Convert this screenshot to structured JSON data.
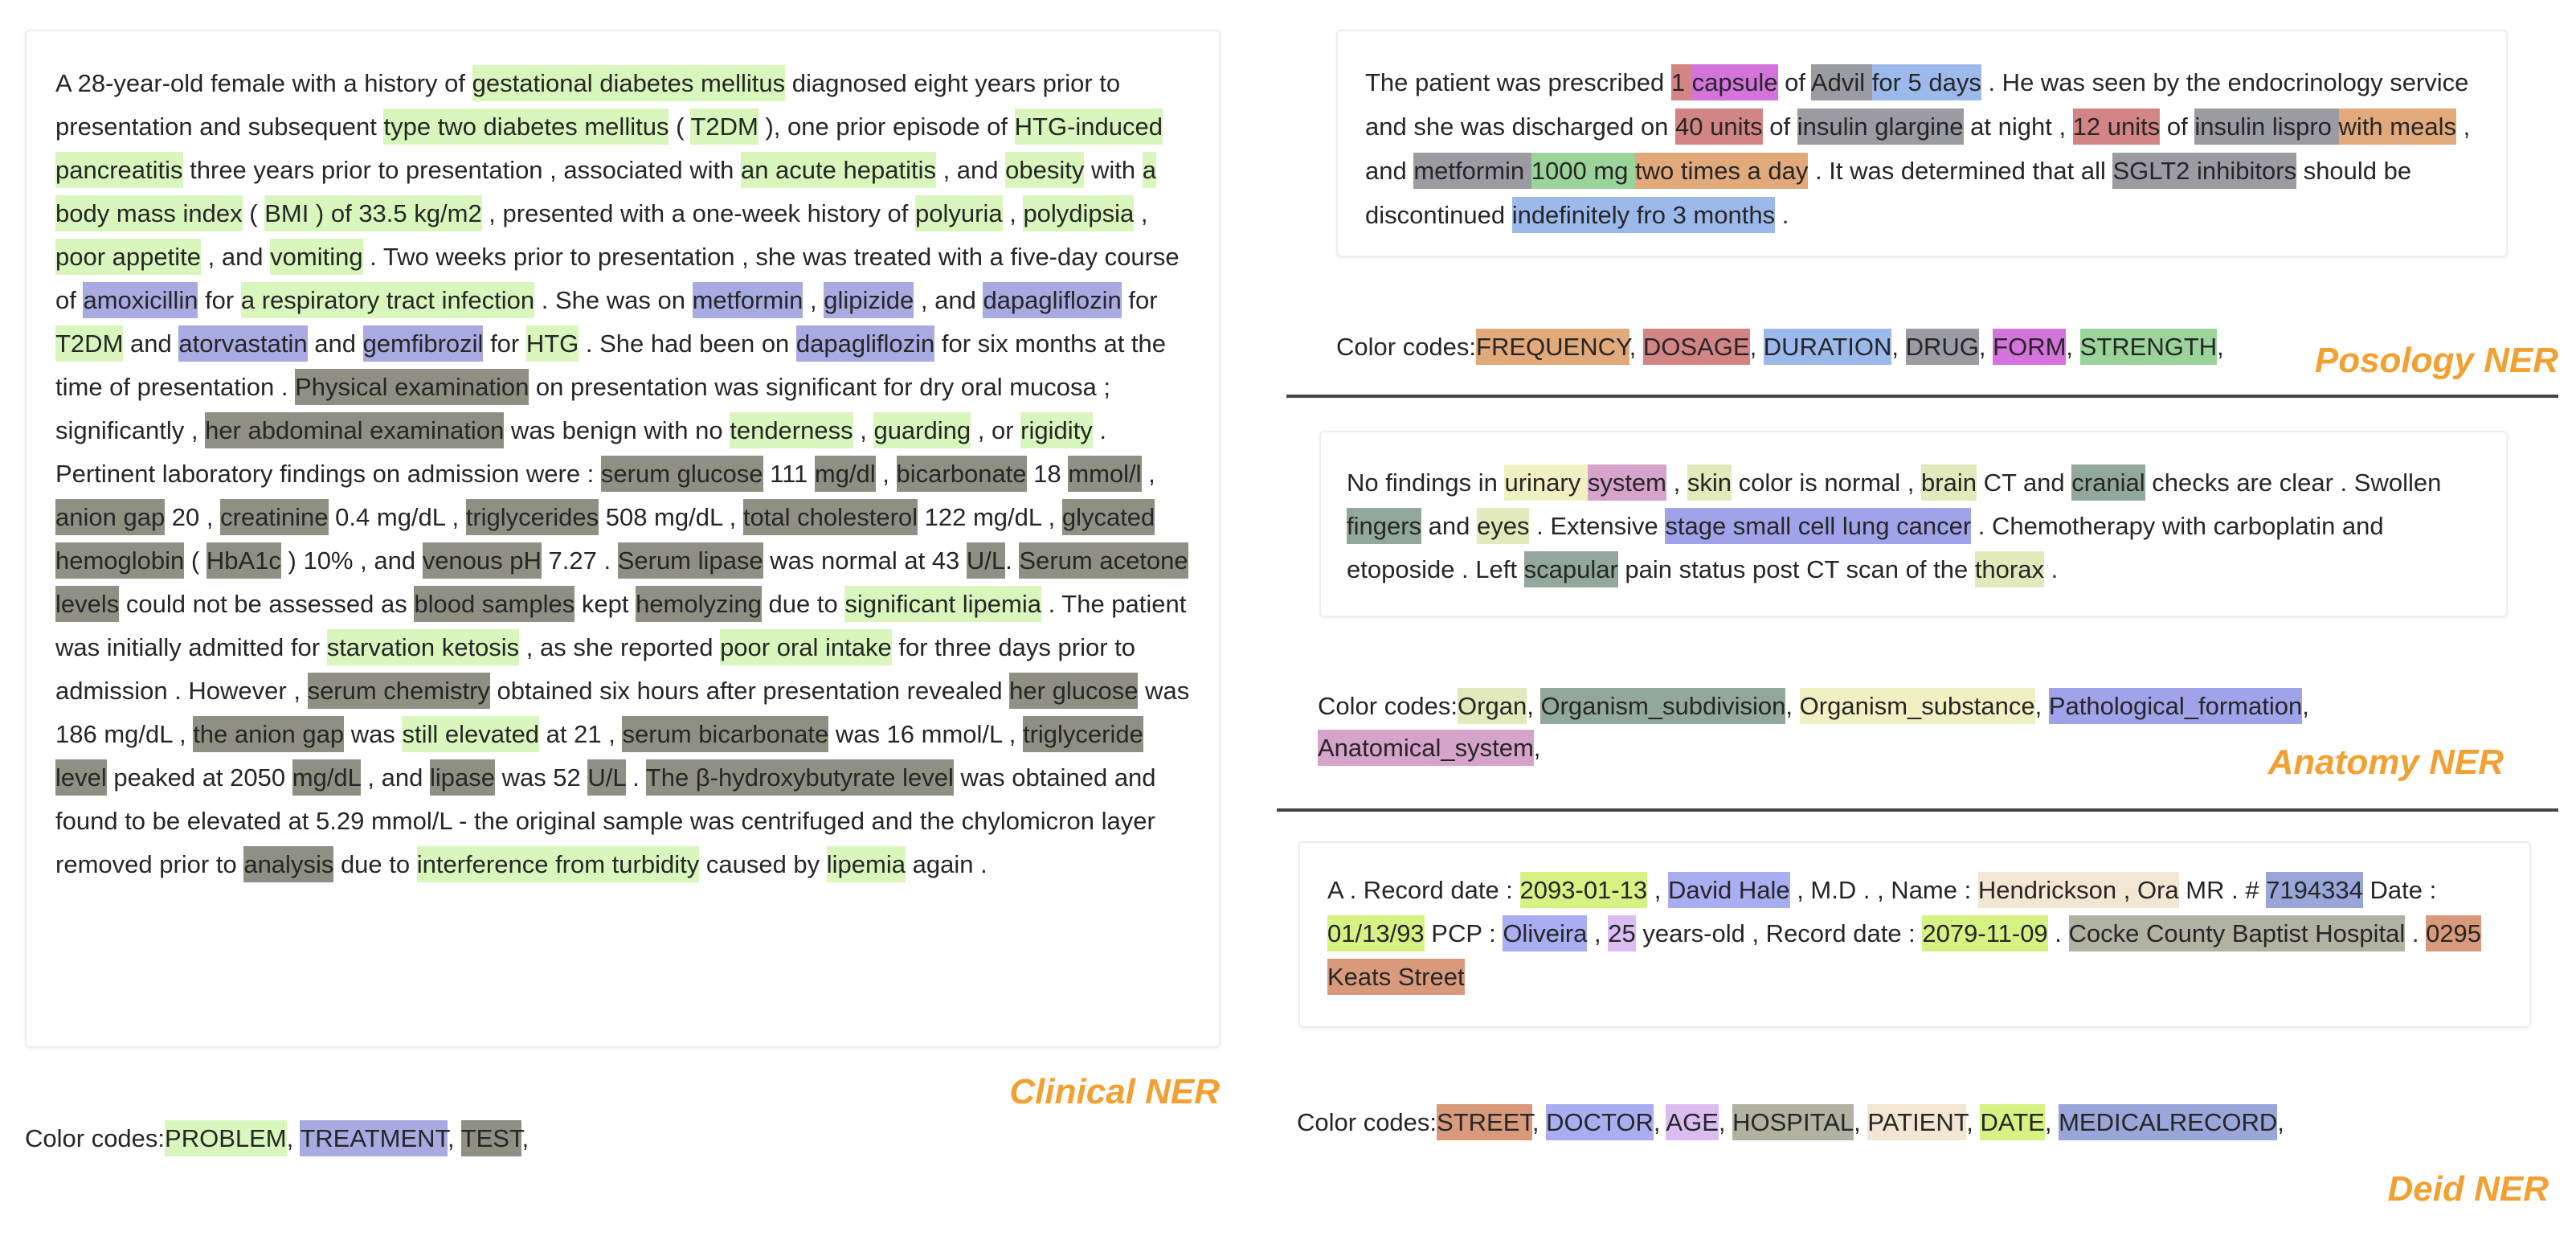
{
  "colors": {
    "PROBLEM": "#d9f6bd",
    "TREATMENT": "#a7abe2",
    "TEST": "#8f9083",
    "FREQUENCY": "#e2a97b",
    "DOSAGE": "#d38585",
    "DURATION": "#9cb9ec",
    "DRUG": "#9b9ba2",
    "FORM": "#d473dc",
    "STRENGTH": "#9bd49b",
    "Organ": "#e2e9bb",
    "Organism_subdivision": "#92a89c",
    "Organism_substance": "#f0f1c2",
    "Pathological_formation": "#a0a2ea",
    "Anatomical_system": "#d6a3cb",
    "STREET": "#d99a7c",
    "DOCTOR": "#a9adf2",
    "AGE": "#dbbdf2",
    "HOSPITAL": "#b2b2a3",
    "PATIENT": "#f3e6d2",
    "DATE": "#d5f283",
    "MEDICALRECORD": "#9aa6da"
  },
  "legend_prefix": "Color codes:",
  "panels": {
    "clinical": {
      "title": "Clinical NER",
      "labels": [
        "PROBLEM",
        "TREATMENT",
        "TEST"
      ],
      "segments": [
        [
          "A 28-year-old female with a history of ",
          null
        ],
        [
          "gestational diabetes mellitus",
          "PROBLEM"
        ],
        [
          " diagnosed eight years prior to presentation and subsequent ",
          null
        ],
        [
          "type two diabetes mellitus",
          "PROBLEM"
        ],
        [
          " ( ",
          null
        ],
        [
          "T2DM",
          "PROBLEM"
        ],
        [
          " ), one prior episode of ",
          null
        ],
        [
          "HTG-induced pancreatitis",
          "PROBLEM"
        ],
        [
          " three years prior to presentation , associated with ",
          null
        ],
        [
          "an acute hepatitis",
          "PROBLEM"
        ],
        [
          " , and ",
          null
        ],
        [
          "obesity",
          "PROBLEM"
        ],
        [
          " with ",
          null
        ],
        [
          "a body mass index",
          "PROBLEM"
        ],
        [
          " ( ",
          null
        ],
        [
          "BMI ) of 33.5 kg/m2",
          "PROBLEM"
        ],
        [
          " , presented with a one-week history of ",
          null
        ],
        [
          "polyuria",
          "PROBLEM"
        ],
        [
          " , ",
          null
        ],
        [
          "polydipsia",
          "PROBLEM"
        ],
        [
          " , ",
          null
        ],
        [
          "poor appetite",
          "PROBLEM"
        ],
        [
          " , and ",
          null
        ],
        [
          "vomiting",
          "PROBLEM"
        ],
        [
          " . Two weeks prior to presentation , she was treated with a five-day course of ",
          null
        ],
        [
          "amoxicillin",
          "TREATMENT"
        ],
        [
          " for ",
          null
        ],
        [
          "a respiratory tract infection",
          "PROBLEM"
        ],
        [
          " . She was on ",
          null
        ],
        [
          "metformin",
          "TREATMENT"
        ],
        [
          " , ",
          null
        ],
        [
          "glipizide",
          "TREATMENT"
        ],
        [
          " , and ",
          null
        ],
        [
          "dapagliflozin",
          "TREATMENT"
        ],
        [
          " for ",
          null
        ],
        [
          "T2DM",
          "PROBLEM"
        ],
        [
          " and ",
          null
        ],
        [
          "atorvastatin",
          "TREATMENT"
        ],
        [
          " and ",
          null
        ],
        [
          "gemfibrozil",
          "TREATMENT"
        ],
        [
          " for ",
          null
        ],
        [
          "HTG",
          "PROBLEM"
        ],
        [
          " . She had been on ",
          null
        ],
        [
          "dapagliflozin",
          "TREATMENT"
        ],
        [
          " for six months at the time of presentation . ",
          null
        ],
        [
          "Physical examination",
          "TEST"
        ],
        [
          " on presentation was significant for dry oral mucosa ; significantly , ",
          null
        ],
        [
          "her abdominal examination",
          "TEST"
        ],
        [
          " was benign with no ",
          null
        ],
        [
          "tenderness",
          "PROBLEM"
        ],
        [
          " , ",
          null
        ],
        [
          "guarding",
          "PROBLEM"
        ],
        [
          " , or ",
          null
        ],
        [
          "rigidity",
          "PROBLEM"
        ],
        [
          " . Pertinent laboratory findings on admission were : ",
          null
        ],
        [
          "serum glucose",
          "TEST"
        ],
        [
          " 111 ",
          null
        ],
        [
          "mg/dl",
          "TEST"
        ],
        [
          " , ",
          null
        ],
        [
          "bicarbonate",
          "TEST"
        ],
        [
          " 18 ",
          null
        ],
        [
          "mmol/l",
          "TEST"
        ],
        [
          " , ",
          null
        ],
        [
          "anion gap",
          "TEST"
        ],
        [
          " 20 , ",
          null
        ],
        [
          "creatinine",
          "TEST"
        ],
        [
          " 0.4 mg/dL , ",
          null
        ],
        [
          "triglycerides",
          "TEST"
        ],
        [
          " 508 mg/dL , ",
          null
        ],
        [
          "total cholesterol",
          "TEST"
        ],
        [
          " 122 mg/dL , ",
          null
        ],
        [
          "glycated hemoglobin",
          "TEST"
        ],
        [
          " ( ",
          null
        ],
        [
          "HbA1c",
          "TEST"
        ],
        [
          " ) 10% , and ",
          null
        ],
        [
          "venous pH",
          "TEST"
        ],
        [
          " 7.27 . ",
          null
        ],
        [
          "Serum lipase",
          "TEST"
        ],
        [
          " was normal at 43 ",
          null
        ],
        [
          "U/L",
          "TEST"
        ],
        [
          ". ",
          null
        ],
        [
          "Serum acetone levels",
          "TEST"
        ],
        [
          " could not be assessed as ",
          null
        ],
        [
          "blood samples",
          "TEST"
        ],
        [
          " kept ",
          null
        ],
        [
          "hemolyzing",
          "TEST"
        ],
        [
          " due to ",
          null
        ],
        [
          "significant lipemia",
          "PROBLEM"
        ],
        [
          " . The patient was initially admitted for ",
          null
        ],
        [
          "starvation ketosis",
          "PROBLEM"
        ],
        [
          " , as she reported ",
          null
        ],
        [
          "poor oral intake",
          "PROBLEM"
        ],
        [
          " for three days prior to admission . However , ",
          null
        ],
        [
          "serum chemistry",
          "TEST"
        ],
        [
          " obtained six hours after presentation revealed ",
          null
        ],
        [
          "her glucose",
          "TEST"
        ],
        [
          " was 186 mg/dL , ",
          null
        ],
        [
          "the anion gap",
          "TEST"
        ],
        [
          " was ",
          null
        ],
        [
          "still elevated",
          "PROBLEM"
        ],
        [
          " at 21 , ",
          null
        ],
        [
          "serum bicarbonate",
          "TEST"
        ],
        [
          " was 16 mmol/L , ",
          null
        ],
        [
          "triglyceride level",
          "TEST"
        ],
        [
          " peaked at 2050 ",
          null
        ],
        [
          "mg/dL",
          "TEST"
        ],
        [
          " , and ",
          null
        ],
        [
          "lipase",
          "TEST"
        ],
        [
          " was 52 ",
          null
        ],
        [
          "U/L",
          "TEST"
        ],
        [
          " . ",
          null
        ],
        [
          "The β-hydroxybutyrate level",
          "TEST"
        ],
        [
          " was obtained and found to be elevated at 5.29 mmol/L - the original sample was centrifuged and the chylomicron layer removed prior to ",
          null
        ],
        [
          "analysis",
          "TEST"
        ],
        [
          " due to ",
          null
        ],
        [
          "interference from turbidity",
          "PROBLEM"
        ],
        [
          " caused by ",
          null
        ],
        [
          "lipemia",
          "PROBLEM"
        ],
        [
          " again .",
          null
        ]
      ]
    },
    "posology": {
      "title": "Posology NER",
      "labels": [
        "FREQUENCY",
        "DOSAGE",
        "DURATION",
        "DRUG",
        "FORM",
        "STRENGTH"
      ],
      "segments": [
        [
          "The patient was prescribed ",
          null
        ],
        [
          "1 ",
          "DOSAGE"
        ],
        [
          "capsule",
          "FORM"
        ],
        [
          " of ",
          null
        ],
        [
          "Advil ",
          "DRUG"
        ],
        [
          "for 5 days",
          "DURATION"
        ],
        [
          " . He was seen by the endocrinology service and she was discharged on ",
          null
        ],
        [
          "40 units",
          "DOSAGE"
        ],
        [
          " of ",
          null
        ],
        [
          "insulin glargine",
          "DRUG"
        ],
        [
          " at night , ",
          null
        ],
        [
          "12 units",
          "DOSAGE"
        ],
        [
          " of ",
          null
        ],
        [
          "insulin lispro ",
          "DRUG"
        ],
        [
          "with meals",
          "FREQUENCY"
        ],
        [
          " , and ",
          null
        ],
        [
          "metformin ",
          "DRUG"
        ],
        [
          "1000 mg ",
          "STRENGTH"
        ],
        [
          "two times a day",
          "FREQUENCY"
        ],
        [
          " . It was determined that all ",
          null
        ],
        [
          "SGLT2 inhibitors",
          "DRUG"
        ],
        [
          " should be discontinued ",
          null
        ],
        [
          "indefinitely fro 3 months",
          "DURATION"
        ],
        [
          " .",
          null
        ]
      ]
    },
    "anatomy": {
      "title": "Anatomy NER",
      "labels": [
        "Organ",
        "Organism_subdivision",
        "Organism_substance",
        "Pathological_formation",
        "Anatomical_system"
      ],
      "segments": [
        [
          "No findings in ",
          null
        ],
        [
          "urinary ",
          "Organism_substance"
        ],
        [
          "system",
          "Anatomical_system"
        ],
        [
          " , ",
          null
        ],
        [
          "skin",
          "Organ"
        ],
        [
          " color is normal , ",
          null
        ],
        [
          "brain",
          "Organ"
        ],
        [
          " CT and ",
          null
        ],
        [
          "cranial",
          "Organism_subdivision"
        ],
        [
          " checks are clear . Swollen ",
          null
        ],
        [
          "fingers",
          "Organism_subdivision"
        ],
        [
          " and ",
          null
        ],
        [
          "eyes",
          "Organ"
        ],
        [
          " . Extensive ",
          null
        ],
        [
          "stage small cell lung cancer",
          "Pathological_formation"
        ],
        [
          " . Chemotherapy with carboplatin and etoposide . Left ",
          null
        ],
        [
          "scapular",
          "Organism_subdivision"
        ],
        [
          " pain status post CT scan of the ",
          null
        ],
        [
          "thorax",
          "Organ"
        ],
        [
          " .",
          null
        ]
      ]
    },
    "deid": {
      "title": "Deid NER",
      "labels": [
        "STREET",
        "DOCTOR",
        "AGE",
        "HOSPITAL",
        "PATIENT",
        "DATE",
        "MEDICALRECORD"
      ],
      "segments": [
        [
          "A . Record date : ",
          null
        ],
        [
          "2093-01-13",
          "DATE"
        ],
        [
          " , ",
          null
        ],
        [
          "David Hale",
          "DOCTOR"
        ],
        [
          " , M.D . , Name : ",
          null
        ],
        [
          "Hendrickson , Ora",
          "PATIENT"
        ],
        [
          " MR . # ",
          null
        ],
        [
          "7194334",
          "MEDICALRECORD"
        ],
        [
          " Date : ",
          null
        ],
        [
          "01/13/93",
          "DATE"
        ],
        [
          " PCP : ",
          null
        ],
        [
          "Oliveira",
          "DOCTOR"
        ],
        [
          " , ",
          null
        ],
        [
          "25",
          "AGE"
        ],
        [
          " years-old , Record date : ",
          null
        ],
        [
          "2079-11-09",
          "DATE"
        ],
        [
          " . ",
          null
        ],
        [
          "Cocke County Baptist Hospital",
          "HOSPITAL"
        ],
        [
          " . ",
          null
        ],
        [
          "0295 Keats Street",
          "STREET"
        ]
      ]
    }
  }
}
